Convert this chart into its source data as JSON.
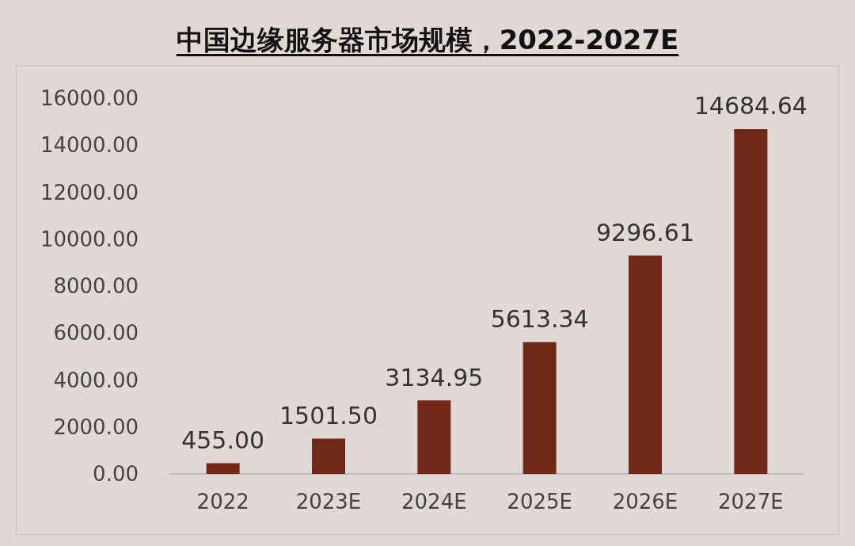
{
  "chart_data": {
    "type": "bar",
    "title": "中国边缘服务器市场规模，2022-2027E",
    "categories": [
      "2022",
      "2023E",
      "2024E",
      "2025E",
      "2026E",
      "2027E"
    ],
    "values": [
      455.0,
      1501.5,
      3134.95,
      5613.34,
      9296.61,
      14684.64
    ],
    "value_labels": [
      "455.00",
      "1501.50",
      "3134.95",
      "5613.34",
      "9296.61",
      "14684.64"
    ],
    "color": "#722816",
    "ylim": [
      0,
      16000
    ],
    "yticks": [
      {
        "value": 0,
        "label": "0.00"
      },
      {
        "value": 2000,
        "label": "2000.00"
      },
      {
        "value": 4000,
        "label": "4000.00"
      },
      {
        "value": 6000,
        "label": "6000.00"
      },
      {
        "value": 8000,
        "label": "8000.00"
      },
      {
        "value": 10000,
        "label": "10000.00"
      },
      {
        "value": 12000,
        "label": "12000.00"
      },
      {
        "value": 14000,
        "label": "14000.00"
      },
      {
        "value": 16000,
        "label": "16000.00"
      }
    ],
    "grid": false
  }
}
